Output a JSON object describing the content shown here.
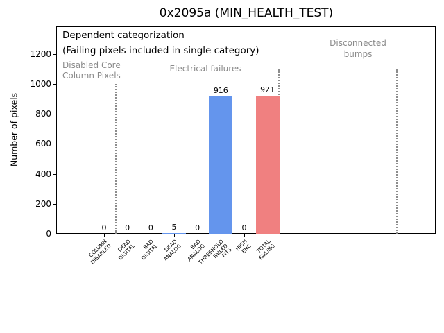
{
  "chart_data": {
    "type": "bar",
    "title": "0x2095a (MIN_HEALTH_TEST)",
    "ylabel": "Number of pixels",
    "xlabel": "",
    "categories": [
      "COLUMN\nDISABLED",
      "DEAD\nDIGITAL",
      "BAD\nDIGITAL",
      "DEAD\nANALOG",
      "BAD\nANALOG",
      "THRESHOLD\nFAILED\nFITS",
      "HIGH\nENC",
      "TOTAL\nFAILING"
    ],
    "values": [
      0,
      0,
      0,
      5,
      0,
      916,
      0,
      921
    ],
    "bar_colors": [
      "#6495ed",
      "#6495ed",
      "#6495ed",
      "#6495ed",
      "#6495ed",
      "#6495ed",
      "#6495ed",
      "#f08080"
    ],
    "value_labels": [
      "0",
      "0",
      "0",
      "5",
      "0",
      "916",
      "0",
      "921"
    ],
    "yticks": [
      0,
      200,
      400,
      600,
      800,
      1000,
      1200
    ],
    "ylim": [
      0,
      1385
    ],
    "xlim": [
      -2.05,
      14.2
    ],
    "grid": false,
    "legend": null,
    "vlines": [
      {
        "x": 0.5,
        "ymax": 1000,
        "style": "dotted",
        "color": "#8c8c8c"
      },
      {
        "x": 7.5,
        "ymax": 1100,
        "style": "dotted",
        "color": "#8c8c8c"
      },
      {
        "x": 12.53,
        "ymax": 1100,
        "style": "dotted",
        "color": "#8c8c8c"
      }
    ],
    "annotations": {
      "header_line1": "Dependent categorization",
      "header_line2": "(Failing pixels included in single category)",
      "region_labels": [
        {
          "text": "Disabled Core\nColumn Pixels"
        },
        {
          "text": "Electrical failures"
        },
        {
          "text": "Disconnected\nbumps"
        }
      ]
    },
    "colors": {
      "blue_bar": "#6495ed",
      "red_bar": "#f08080",
      "region_label_gray": "#8a8a8a",
      "vline_gray": "#8c8c8c"
    }
  }
}
